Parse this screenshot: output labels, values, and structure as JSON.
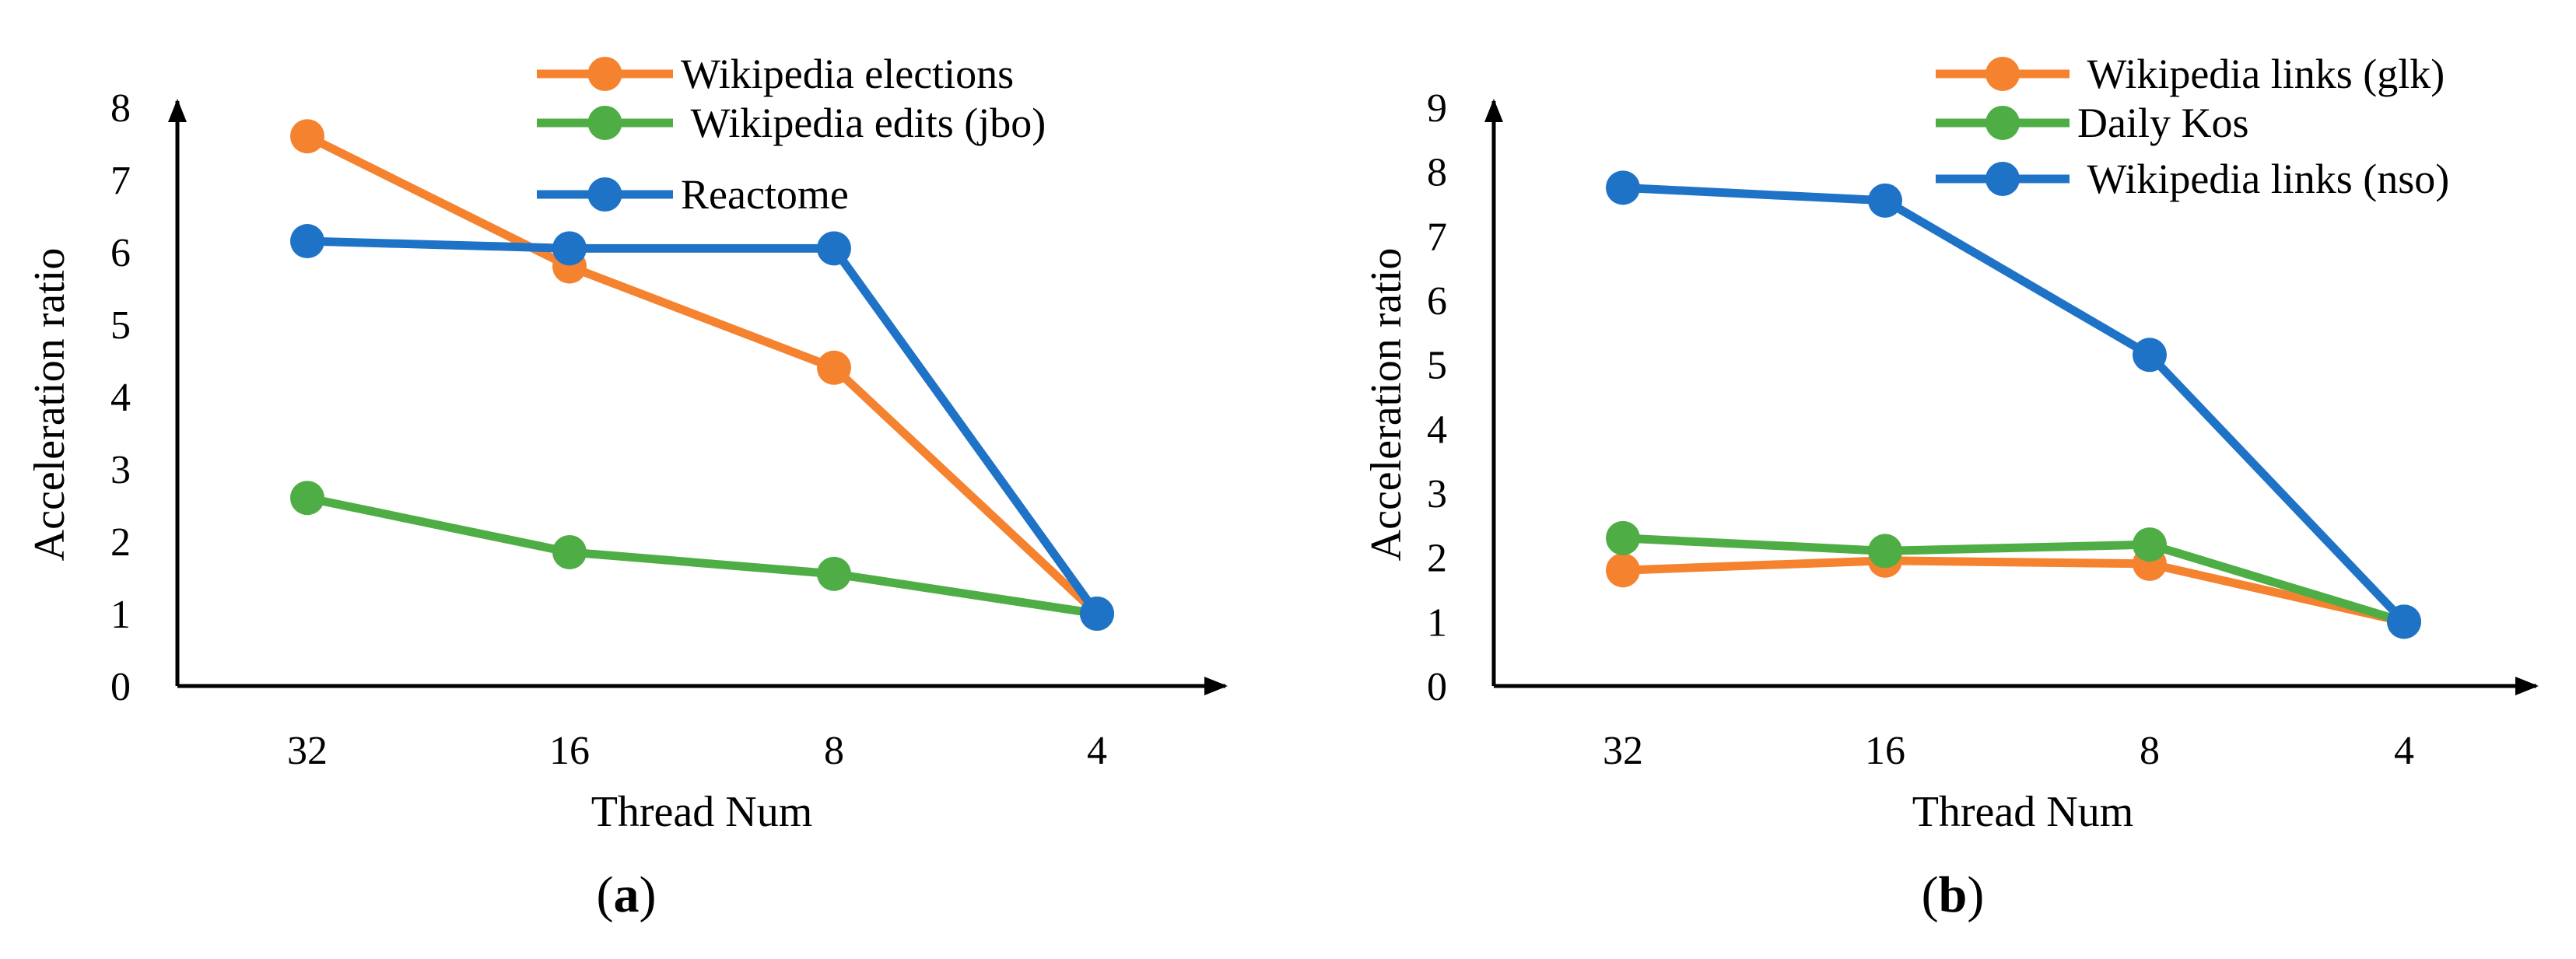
{
  "colors": {
    "orange": "#F5822E",
    "green": "#4EAE45",
    "blue": "#1F73C7",
    "axis": "#000000"
  },
  "chart_data": [
    {
      "type": "line",
      "panel_label": "a",
      "xlabel": "Thread Num",
      "ylabel": "Acceleration ratio",
      "categories": [
        "32",
        "16",
        "8",
        "4"
      ],
      "ylim": [
        0,
        8
      ],
      "yticks": [
        "0",
        "1",
        "2",
        "3",
        "4",
        "5",
        "6",
        "7",
        "8"
      ],
      "legend_position": "top-center",
      "series": [
        {
          "name": "Wikipedia elections",
          "color": "orange",
          "values": [
            7.6,
            5.8,
            4.4,
            1.0
          ]
        },
        {
          "name": " Wikipedia edits (jbo)",
          "color": "green",
          "values": [
            2.6,
            1.85,
            1.55,
            1.0
          ]
        },
        {
          "name": "Reactome",
          "color": "blue",
          "values": [
            6.15,
            6.05,
            6.05,
            1.0
          ]
        }
      ]
    },
    {
      "type": "line",
      "panel_label": "b",
      "xlabel": "Thread Num",
      "ylabel": "Acceleration ratio",
      "categories": [
        "32",
        "16",
        "8",
        "4"
      ],
      "ylim": [
        0,
        9
      ],
      "yticks": [
        "0",
        "1",
        "2",
        "3",
        "4",
        "5",
        "6",
        "7",
        "8",
        "9"
      ],
      "legend_position": "top-right",
      "series": [
        {
          "name": " Wikipedia links (glk)",
          "color": "orange",
          "values": [
            1.8,
            1.95,
            1.9,
            1.0
          ]
        },
        {
          "name": "Daily Kos",
          "color": "green",
          "values": [
            2.3,
            2.1,
            2.2,
            1.0
          ]
        },
        {
          "name": " Wikipedia links (nso)",
          "color": "blue",
          "values": [
            7.75,
            7.55,
            5.15,
            1.0
          ]
        }
      ]
    }
  ]
}
